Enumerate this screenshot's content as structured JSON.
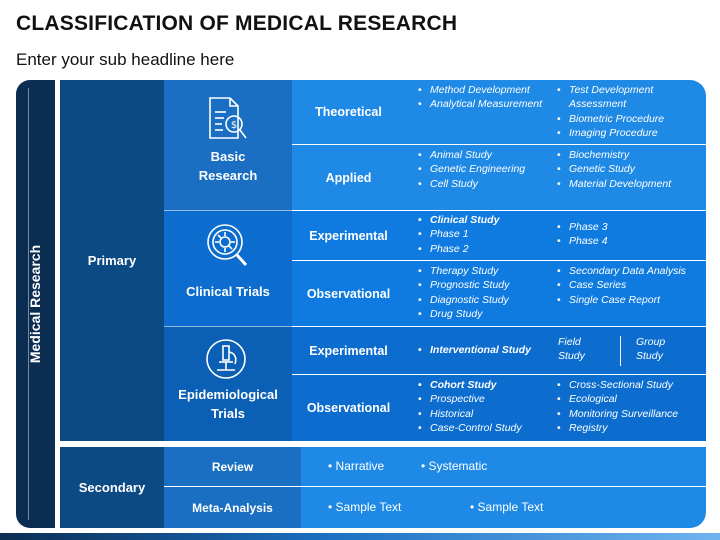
{
  "title": "CLASSIFICATION OF MEDICAL RESEARCH",
  "subtitle": "Enter your sub headline here",
  "root": "Medical Research",
  "primary": {
    "label": "Primary",
    "categories": [
      {
        "label": "Basic Research",
        "icon": "document-dollar-icon",
        "types": [
          {
            "label": "Theoretical",
            "left": [
              {
                "text": "Method Development"
              },
              {
                "text": "Analytical Measurement"
              }
            ],
            "right": [
              {
                "text": "Test Development Assessment"
              },
              {
                "text": "Biometric Procedure"
              },
              {
                "text": "Imaging Procedure"
              }
            ]
          },
          {
            "label": "Applied",
            "left": [
              {
                "text": "Animal Study"
              },
              {
                "text": "Genetic Engineering"
              },
              {
                "text": "Cell Study"
              }
            ],
            "right": [
              {
                "text": "Biochemistry"
              },
              {
                "text": "Genetic Study"
              },
              {
                "text": "Material Development"
              }
            ]
          }
        ]
      },
      {
        "label": "Clinical Trials",
        "icon": "virus-magnifier-icon",
        "types": [
          {
            "label": "Experimental",
            "left": [
              {
                "text": "Clinical Study"
              },
              {
                "text": "Phase 1"
              },
              {
                "text": "Phase 2"
              }
            ],
            "right": [
              {
                "text": "Phase 3"
              },
              {
                "text": "Phase 4"
              }
            ]
          },
          {
            "label": "Observational",
            "left": [
              {
                "text": "Therapy Study"
              },
              {
                "text": "Prognostic Study"
              },
              {
                "text": "Diagnostic Study"
              },
              {
                "text": "Drug Study"
              }
            ],
            "right": [
              {
                "text": "Secondary Data Analysis"
              },
              {
                "text": "Case Series"
              },
              {
                "text": "Single Case Report"
              }
            ]
          }
        ]
      },
      {
        "label": "Epidemiological Trials",
        "icon": "microscope-icon",
        "types": [
          {
            "label": "Experimental",
            "left": [
              {
                "text": "Interventional Study"
              }
            ],
            "right": [
              {
                "text": "Field Study"
              },
              {
                "text": "Group Study"
              }
            ]
          },
          {
            "label": "Observational",
            "left": [
              {
                "text": "Cohort Study"
              },
              {
                "text": "Prospective"
              },
              {
                "text": "Historical"
              },
              {
                "text": "Case-Control Study"
              }
            ],
            "right": [
              {
                "text": "Cross-Sectional Study"
              },
              {
                "text": "Ecological"
              },
              {
                "text": "Monitoring Surveillance"
              },
              {
                "text": "Registry"
              }
            ]
          }
        ]
      }
    ]
  },
  "secondary": {
    "label": "Secondary",
    "rows": [
      {
        "label": "Review",
        "items": [
          "Narrative",
          "Systematic"
        ]
      },
      {
        "label": "Meta-Analysis",
        "items": [
          "Sample Text",
          "Sample Text"
        ]
      }
    ]
  },
  "colors": {
    "navy": "#0b2d52",
    "dark_blue": "#0c4a84",
    "mid_blue": "#1a6fc2",
    "bright_blue": "#1f8ae6"
  }
}
